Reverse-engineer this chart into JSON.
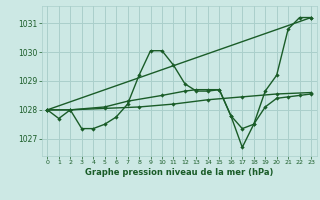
{
  "bg_color": "#cce8e4",
  "grid_color": "#aacfcb",
  "line_color": "#1a5c28",
  "title": "Graphe pression niveau de la mer (hPa)",
  "xlim": [
    -0.5,
    23.5
  ],
  "ylim": [
    1026.4,
    1031.6
  ],
  "yticks": [
    1027,
    1028,
    1029,
    1030,
    1031
  ],
  "xticks": [
    0,
    1,
    2,
    3,
    4,
    5,
    6,
    7,
    8,
    9,
    10,
    11,
    12,
    13,
    14,
    15,
    16,
    17,
    18,
    19,
    20,
    21,
    22,
    23
  ],
  "series": [
    {
      "x": [
        0,
        1,
        2,
        3,
        4,
        5,
        6,
        7,
        8,
        9,
        10,
        11,
        12,
        13,
        14,
        15,
        16,
        17,
        18,
        19,
        20,
        21,
        22,
        23
      ],
      "y": [
        1028.0,
        1027.7,
        1028.0,
        1027.35,
        1027.35,
        1027.5,
        1027.75,
        1028.2,
        1029.2,
        1030.05,
        1030.05,
        1029.55,
        1028.9,
        1028.65,
        1028.65,
        1028.7,
        1027.8,
        1026.7,
        1027.5,
        1028.65,
        1029.2,
        1030.8,
        1031.2,
        1031.2
      ]
    },
    {
      "x": [
        0,
        23
      ],
      "y": [
        1028.0,
        1031.2
      ]
    },
    {
      "x": [
        0,
        2,
        5,
        7,
        10,
        12,
        13,
        14,
        15,
        16,
        17,
        18,
        19,
        20,
        21,
        22,
        23
      ],
      "y": [
        1028.0,
        1028.0,
        1028.1,
        1028.3,
        1028.5,
        1028.65,
        1028.7,
        1028.7,
        1028.7,
        1027.8,
        1027.35,
        1027.5,
        1028.1,
        1028.4,
        1028.45,
        1028.5,
        1028.55
      ]
    },
    {
      "x": [
        0,
        2,
        5,
        8,
        11,
        14,
        17,
        20,
        23
      ],
      "y": [
        1028.0,
        1028.0,
        1028.05,
        1028.1,
        1028.2,
        1028.35,
        1028.45,
        1028.55,
        1028.6
      ]
    }
  ]
}
